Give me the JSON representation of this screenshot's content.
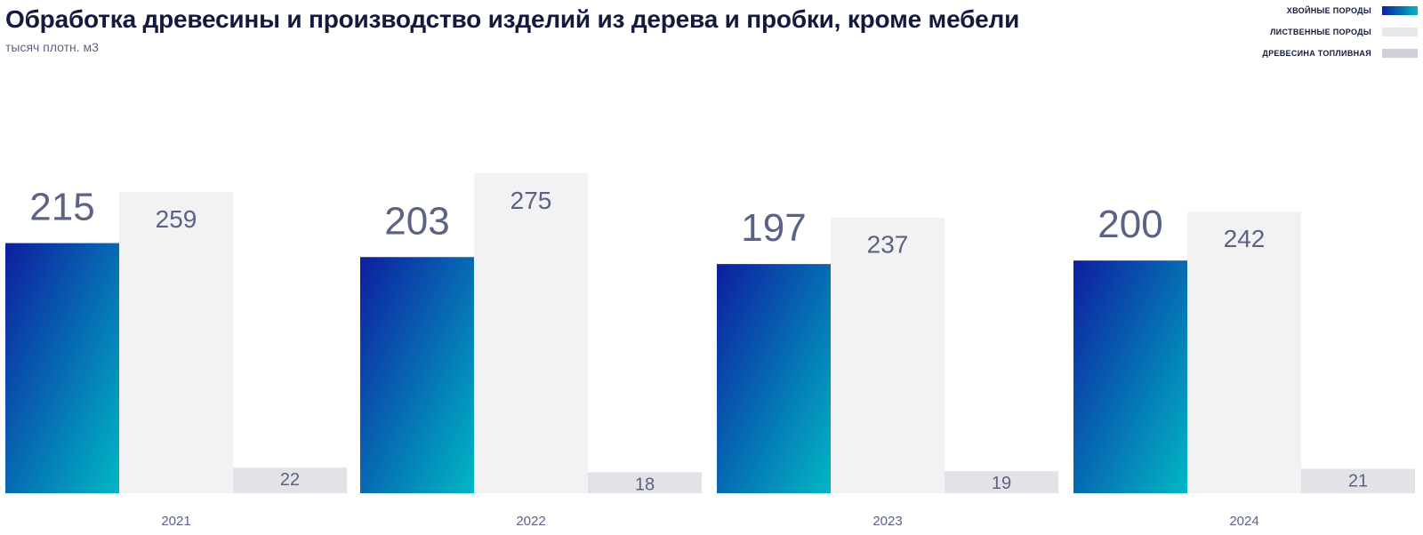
{
  "chart_data": {
    "type": "bar",
    "title": "Обработка древесины и производство изделий из дерева и пробки, кроме мебели",
    "subtitle": "тысяч плотн. м3",
    "categories": [
      "2021",
      "2022",
      "2023",
      "2024"
    ],
    "series": [
      {
        "name": "ХВОЙНЫЕ ПОРОДЫ",
        "values": [
          215,
          203,
          197,
          200
        ],
        "color_start": "#0d1ea0",
        "color_end": "#00b8c4"
      },
      {
        "name": "ЛИСТВЕННЫЕ ПОРОДЫ",
        "values": [
          259,
          275,
          237,
          242
        ],
        "color": "#f2f2f5"
      },
      {
        "name": "ДРЕВЕСИНА ТОПЛИВНАЯ",
        "values": [
          22,
          18,
          19,
          21
        ],
        "color": "#e2e2e7"
      }
    ],
    "ylim": [
      0,
      275
    ],
    "legend_position": "top-right",
    "grid": false
  }
}
